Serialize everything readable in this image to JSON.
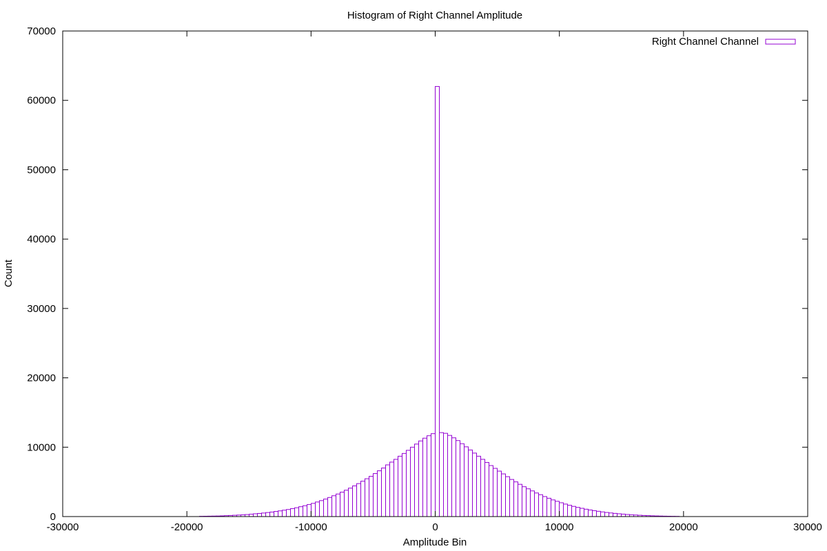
{
  "chart_data": {
    "type": "bar",
    "title": "Histogram of Right Channel Amplitude",
    "xlabel": "Amplitude Bin",
    "ylabel": "Count",
    "xlim": [
      -30000,
      30000
    ],
    "ylim": [
      0,
      70000
    ],
    "xticks": [
      -30000,
      -20000,
      -10000,
      0,
      10000,
      20000,
      30000
    ],
    "yticks": [
      0,
      10000,
      20000,
      30000,
      40000,
      50000,
      60000,
      70000
    ],
    "grid": false,
    "legend_position": "top-right",
    "bin_width": 333,
    "series": [
      {
        "name": "Right Channel Channel",
        "color": "#9400D3",
        "bins": [
          [
            -18981,
            40
          ],
          [
            -18648,
            50
          ],
          [
            -18315,
            60
          ],
          [
            -17982,
            70
          ],
          [
            -17649,
            80
          ],
          [
            -17316,
            100
          ],
          [
            -16983,
            130
          ],
          [
            -16650,
            160
          ],
          [
            -16317,
            190
          ],
          [
            -15984,
            220
          ],
          [
            -15651,
            250
          ],
          [
            -15318,
            290
          ],
          [
            -14985,
            340
          ],
          [
            -14652,
            400
          ],
          [
            -14319,
            450
          ],
          [
            -13986,
            510
          ],
          [
            -13653,
            580
          ],
          [
            -13320,
            650
          ],
          [
            -12987,
            740
          ],
          [
            -12654,
            820
          ],
          [
            -12321,
            920
          ],
          [
            -11988,
            1020
          ],
          [
            -11655,
            1150
          ],
          [
            -11322,
            1270
          ],
          [
            -10989,
            1420
          ],
          [
            -10656,
            1560
          ],
          [
            -10323,
            1730
          ],
          [
            -9990,
            1900
          ],
          [
            -9657,
            2100
          ],
          [
            -9324,
            2300
          ],
          [
            -8991,
            2520
          ],
          [
            -8658,
            2750
          ],
          [
            -8325,
            3000
          ],
          [
            -7992,
            3250
          ],
          [
            -7659,
            3520
          ],
          [
            -7326,
            3800
          ],
          [
            -6993,
            4100
          ],
          [
            -6660,
            4420
          ],
          [
            -6327,
            4750
          ],
          [
            -5994,
            5100
          ],
          [
            -5661,
            5450
          ],
          [
            -5328,
            5800
          ],
          [
            -4995,
            6200
          ],
          [
            -4662,
            6600
          ],
          [
            -4329,
            7000
          ],
          [
            -3996,
            7450
          ],
          [
            -3663,
            7850
          ],
          [
            -3330,
            8250
          ],
          [
            -2997,
            8700
          ],
          [
            -2664,
            9100
          ],
          [
            -2331,
            9550
          ],
          [
            -1998,
            10000
          ],
          [
            -1665,
            10450
          ],
          [
            -1332,
            10900
          ],
          [
            -999,
            11300
          ],
          [
            -666,
            11650
          ],
          [
            -333,
            11950
          ],
          [
            0,
            62000
          ],
          [
            333,
            12100
          ],
          [
            666,
            12000
          ],
          [
            999,
            11700
          ],
          [
            1332,
            11350
          ],
          [
            1665,
            10950
          ],
          [
            1998,
            10500
          ],
          [
            2331,
            10050
          ],
          [
            2664,
            9600
          ],
          [
            2997,
            9150
          ],
          [
            3330,
            8700
          ],
          [
            3663,
            8250
          ],
          [
            3996,
            7800
          ],
          [
            4329,
            7350
          ],
          [
            4662,
            6950
          ],
          [
            4995,
            6550
          ],
          [
            5328,
            6150
          ],
          [
            5661,
            5750
          ],
          [
            5994,
            5350
          ],
          [
            6327,
            5000
          ],
          [
            6660,
            4650
          ],
          [
            6993,
            4300
          ],
          [
            7326,
            4000
          ],
          [
            7659,
            3700
          ],
          [
            7992,
            3400
          ],
          [
            8325,
            3150
          ],
          [
            8658,
            2880
          ],
          [
            8991,
            2640
          ],
          [
            9324,
            2400
          ],
          [
            9657,
            2200
          ],
          [
            9990,
            1990
          ],
          [
            10323,
            1800
          ],
          [
            10656,
            1630
          ],
          [
            10989,
            1470
          ],
          [
            11322,
            1320
          ],
          [
            11655,
            1190
          ],
          [
            11988,
            1060
          ],
          [
            12321,
            950
          ],
          [
            12654,
            850
          ],
          [
            12987,
            760
          ],
          [
            13320,
            670
          ],
          [
            13653,
            590
          ],
          [
            13986,
            520
          ],
          [
            14319,
            460
          ],
          [
            14652,
            400
          ],
          [
            14985,
            350
          ],
          [
            15318,
            300
          ],
          [
            15651,
            260
          ],
          [
            15984,
            225
          ],
          [
            16317,
            190
          ],
          [
            16650,
            160
          ],
          [
            16983,
            135
          ],
          [
            17316,
            110
          ],
          [
            17649,
            90
          ],
          [
            17982,
            75
          ],
          [
            18315,
            60
          ],
          [
            18648,
            50
          ],
          [
            18981,
            40
          ],
          [
            19314,
            30
          ]
        ]
      }
    ]
  }
}
